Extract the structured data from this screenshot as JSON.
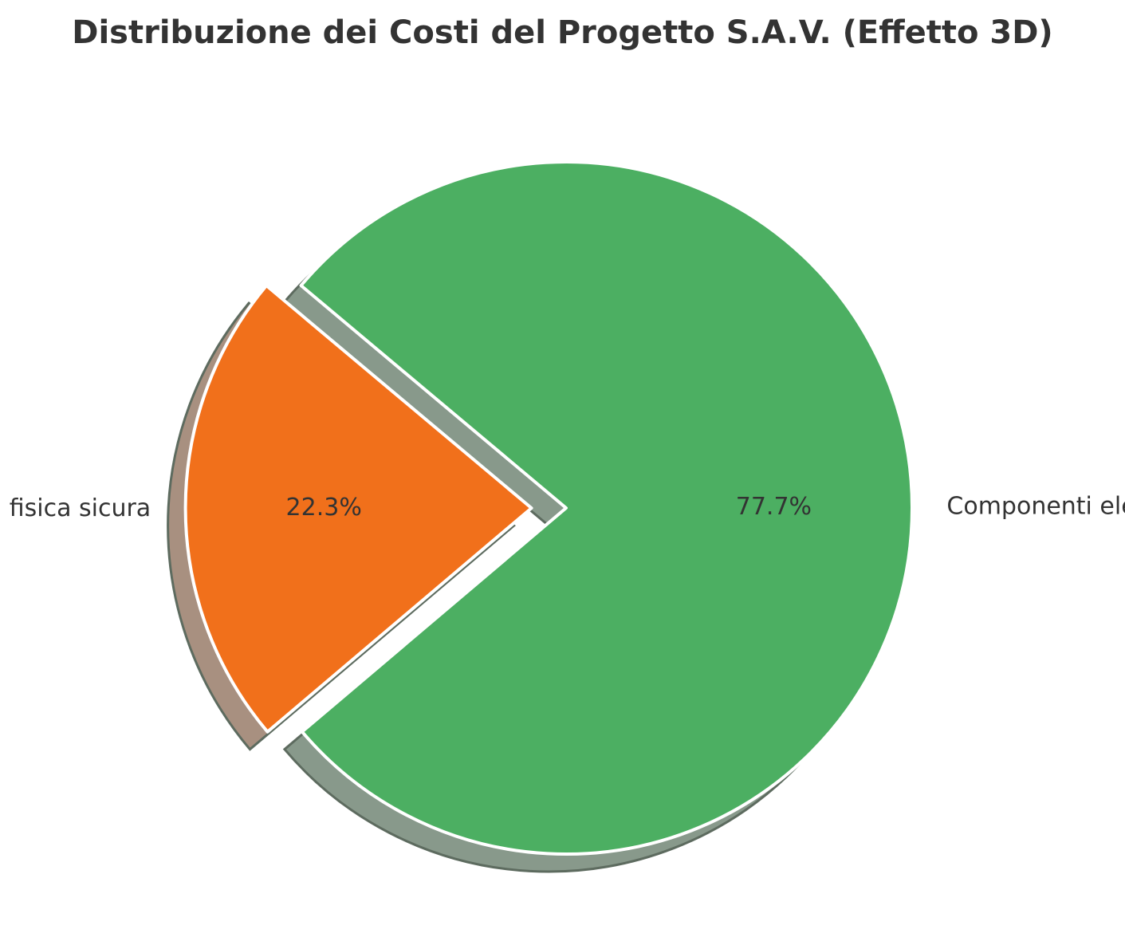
{
  "chart_data": {
    "type": "pie",
    "title": "Distribuzione dei Costi del Progetto S.A.V. (Effetto 3D)",
    "series": [
      {
        "label": "Struttura fisica sicura",
        "value": 22.3,
        "pct_label": "22.3%",
        "color": "#f1701b",
        "shadow_color": "#a89080",
        "exploded": true
      },
      {
        "label": "Componenti elettronici",
        "value": 77.7,
        "pct_label": "77.7%",
        "color": "#4caf62",
        "shadow_color": "#88998b",
        "exploded": false
      }
    ],
    "start_angle_deg": 140,
    "direction": "counterclockwise",
    "shadow": true,
    "slice_edge_color": "#ffffff",
    "legend": "none"
  }
}
